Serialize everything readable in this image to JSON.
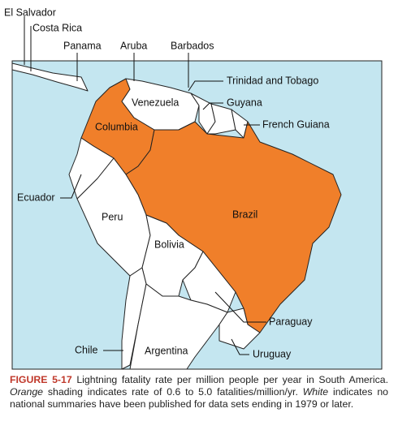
{
  "map": {
    "labels": [
      "El Salvador",
      "Costa Rica",
      "Panama",
      "Aruba",
      "Barbados",
      "Trinidad and Tobago",
      "Venezuela",
      "Guyana",
      "Columbia",
      "French Guiana",
      "Ecuador",
      "Peru",
      "Brazil",
      "Bolivia",
      "Paraguay",
      "Chile",
      "Argentina",
      "Uruguay"
    ]
  },
  "caption": {
    "label": "FIGURE 5-17",
    "text_1": "Lightning fatality rate per million people per year in South America.",
    "emphasis_1": "Orange",
    "text_2": "shading indicates rate of 0.6 to 5.0 fatalities/million/yr.",
    "emphasis_2": "White",
    "text_3": "indicates no national summaries have been published for data sets ending in 1979 or later."
  }
}
